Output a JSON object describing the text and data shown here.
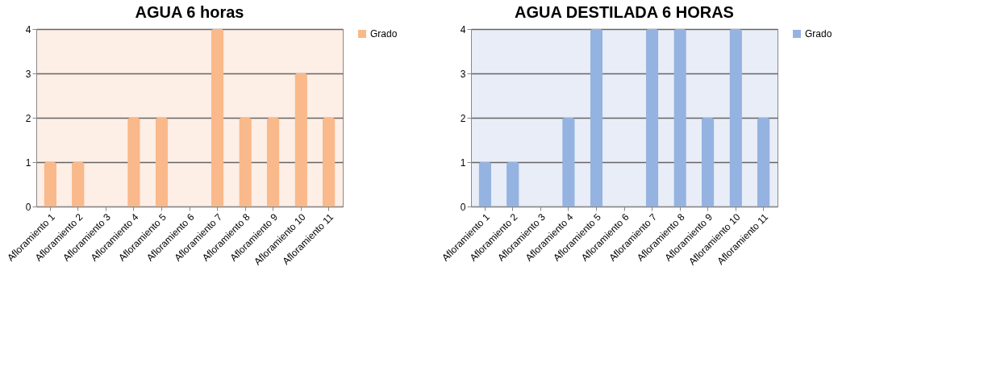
{
  "chart_data": [
    {
      "type": "bar",
      "title": "AGUA 6 horas",
      "categories": [
        "Afloramiento 1",
        "Afloramiento 2",
        "Afloramiento 3",
        "Afloramiento 4",
        "Afloramiento 5",
        "Afloramiento 6",
        "Afloramiento 7",
        "Afloramiento 8",
        "Afloramiento 9",
        "Afloramiento 10",
        "Afloramiento 11"
      ],
      "series": [
        {
          "name": "Grado",
          "color": "#f9b98a",
          "values": [
            1,
            1,
            0,
            2,
            2,
            0,
            4,
            2,
            2,
            3,
            2
          ]
        }
      ],
      "ylim": [
        0,
        4
      ],
      "yticks": [
        0,
        1,
        2,
        3,
        4
      ],
      "grid": "y",
      "legend": "right"
    },
    {
      "type": "bar",
      "title": "AGUA DESTILADA 6 HORAS",
      "categories": [
        "Afloramiento 1",
        "Afloramiento 2",
        "Afloramiento 3",
        "Afloramiento 4",
        "Afloramiento 5",
        "Afloramiento 6",
        "Afloramiento 7",
        "Afloramiento 8",
        "Afloramiento 9",
        "Afloramiento 10",
        "Afloramiento 11"
      ],
      "series": [
        {
          "name": "Grado",
          "color": "#95b3e0",
          "values": [
            1,
            1,
            0,
            2,
            4,
            0,
            4,
            4,
            2,
            4,
            2
          ]
        }
      ],
      "ylim": [
        0,
        4
      ],
      "yticks": [
        0,
        1,
        2,
        3,
        4
      ],
      "grid": "y",
      "legend": "right"
    }
  ]
}
